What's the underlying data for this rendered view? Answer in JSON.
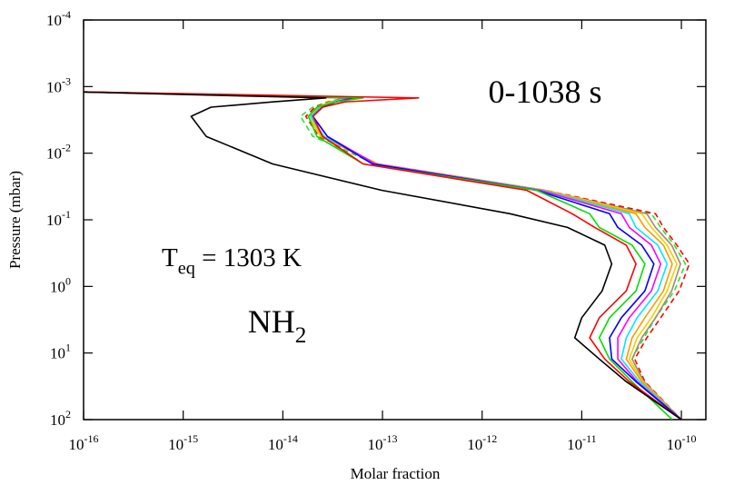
{
  "chart_data": {
    "type": "line",
    "xlabel": "Molar fraction",
    "ylabel": "Pressure (mbar)",
    "xlog": true,
    "ylog": true,
    "y_inverted": true,
    "xlim": [
      1e-16,
      1.76e-10
    ],
    "ylim": [
      0.0001,
      100
    ],
    "xticks": [
      {
        "value": 1e-16,
        "label": "10",
        "exponent": "-16"
      },
      {
        "value": 1e-15,
        "label": "10",
        "exponent": "-15"
      },
      {
        "value": 1e-14,
        "label": "10",
        "exponent": "-14"
      },
      {
        "value": 1e-13,
        "label": "10",
        "exponent": "-13"
      },
      {
        "value": 1e-12,
        "label": "10",
        "exponent": "-12"
      },
      {
        "value": 1e-11,
        "label": "10",
        "exponent": "-11"
      },
      {
        "value": 1e-10,
        "label": "10",
        "exponent": "-10"
      }
    ],
    "yticks": [
      {
        "value": 0.0001,
        "label": "10",
        "exponent": "-4"
      },
      {
        "value": 0.001,
        "label": "10",
        "exponent": "-3"
      },
      {
        "value": 0.01,
        "label": "10",
        "exponent": "-2"
      },
      {
        "value": 0.1,
        "label": "10",
        "exponent": "-1"
      },
      {
        "value": 1,
        "label": "10",
        "exponent": "0"
      },
      {
        "value": 10,
        "label": "10",
        "exponent": "1"
      },
      {
        "value": 100,
        "label": "10",
        "exponent": "2"
      }
    ],
    "annotations": [
      {
        "text": "0-1038 s"
      },
      {
        "text": "T",
        "sub": "eq",
        "after": " = 1303 K"
      },
      {
        "text": "NH",
        "sub": "2"
      }
    ],
    "pressure": [
      0.0012,
      0.00148,
      0.0017,
      0.00204,
      0.0028,
      0.0056,
      0.0145,
      0.036,
      0.081,
      0.13,
      0.24,
      0.46,
      1.17,
      2.95,
      5.9,
      12.3,
      26.9,
      100
    ],
    "series": [
      {
        "color": "#000000",
        "dashed": false,
        "values": [
          7.8e-17,
          2.7e-14,
          7.9e-15,
          1.9e-15,
          1.2e-15,
          1.7e-15,
          7.9e-15,
          9.8e-14,
          1.9e-12,
          7.2e-12,
          1.7e-11,
          2e-11,
          1.6e-11,
          1e-11,
          8.5e-12,
          1.5e-11,
          2.8e-11,
          1e-10
        ]
      },
      {
        "color": "#ff0000",
        "dashed": false,
        "values": [
          9.2e-17,
          2.3e-13,
          4.2e-14,
          2.5e-14,
          2e-14,
          2.5e-14,
          6.4e-14,
          2.8e-12,
          8e-12,
          1.35e-11,
          2.8e-11,
          3.5e-11,
          2.8e-11,
          1.5e-11,
          1.2e-11,
          1.7e-11,
          3e-11,
          1e-10
        ]
      },
      {
        "color": "#00e000",
        "dashed": false,
        "values": [
          9.2e-17,
          6.4e-14,
          3.4e-14,
          2.2e-14,
          1.8e-14,
          2.2e-14,
          6.4e-14,
          3.5e-12,
          1.2e-11,
          1.5e-11,
          3.2e-11,
          4.3e-11,
          3.5e-11,
          1.9e-11,
          1.5e-11,
          1.9e-11,
          3.2e-11,
          8.1e-11
        ]
      },
      {
        "color": "#0000ff",
        "dashed": false,
        "values": [
          9.2e-17,
          5.5e-14,
          3.4e-14,
          2.5e-14,
          2e-14,
          2.8e-14,
          7.9e-14,
          3.5e-12,
          1.9e-11,
          2.3e-11,
          4e-11,
          5.3e-11,
          4.3e-11,
          2.5e-11,
          1.9e-11,
          2e-11,
          3.5e-11,
          1e-10
        ]
      },
      {
        "color": "#ff00ff",
        "dashed": false,
        "values": [
          9.2e-17,
          5e-14,
          3.4e-14,
          2.5e-14,
          2e-14,
          2.8e-14,
          8.5e-14,
          3.8e-12,
          2.5e-11,
          3e-11,
          5e-11,
          6.2e-11,
          5e-11,
          3e-11,
          2.3e-11,
          2.3e-11,
          3.6e-11,
          1e-10
        ]
      },
      {
        "color": "#00e8ff",
        "dashed": false,
        "values": [
          9.2e-17,
          4.8e-14,
          3.2e-14,
          2.4e-14,
          1.9e-14,
          2.6e-14,
          8.5e-14,
          4e-12,
          3e-11,
          3.5e-11,
          5.8e-11,
          7.2e-11,
          5.8e-11,
          3.6e-11,
          2.8e-11,
          2.5e-11,
          3.8e-11,
          1e-10
        ]
      },
      {
        "color": "#ff9900",
        "dashed": false,
        "values": [
          9.2e-17,
          4.6e-14,
          3.1e-14,
          2.3e-14,
          1.9e-14,
          2.5e-14,
          8.5e-14,
          4.2e-12,
          3.5e-11,
          4.3e-11,
          6.6e-11,
          8.1e-11,
          6.6e-11,
          4.3e-11,
          3.2e-11,
          2.8e-11,
          4e-11,
          1e-10
        ]
      },
      {
        "color": "#f0d000",
        "dashed": false,
        "values": [
          9.2e-17,
          4.5e-14,
          3e-14,
          2.2e-14,
          1.8e-14,
          2.4e-14,
          9e-14,
          4.3e-12,
          4e-11,
          5e-11,
          7.2e-11,
          9e-11,
          7.2e-11,
          5e-11,
          3.6e-11,
          3e-11,
          4.1e-11,
          1e-10
        ]
      },
      {
        "color": "#a08a70",
        "dashed": false,
        "values": [
          9.2e-17,
          4.4e-14,
          3e-14,
          2.2e-14,
          1.8e-14,
          2.4e-14,
          9e-14,
          4.3e-12,
          4.5e-11,
          5.5e-11,
          8e-11,
          9.8e-11,
          8e-11,
          5.5e-11,
          4e-11,
          3.2e-11,
          4.2e-11,
          1e-10
        ]
      },
      {
        "color": "#ff0000",
        "dashed": true,
        "values": [
          9.2e-17,
          4.3e-14,
          2.9e-14,
          2.1e-14,
          1.7e-14,
          2.3e-14,
          9e-14,
          4.3e-12,
          5.5e-11,
          6.6e-11,
          9e-11,
          1.2e-10,
          9.5e-11,
          6.2e-11,
          4.5e-11,
          3.4e-11,
          4.3e-11,
          1e-10
        ]
      },
      {
        "color": "#33dd33",
        "dashed": true,
        "values": [
          9.2e-17,
          4.3e-14,
          2.8e-14,
          2e-14,
          1.5e-14,
          2e-14,
          8.5e-14,
          4.2e-12,
          5e-11,
          6.2e-11,
          8.5e-11,
          1.1e-10,
          8.5e-11,
          5.5e-11,
          4.2e-11,
          3.2e-11,
          4.2e-11,
          1e-10
        ]
      }
    ]
  }
}
